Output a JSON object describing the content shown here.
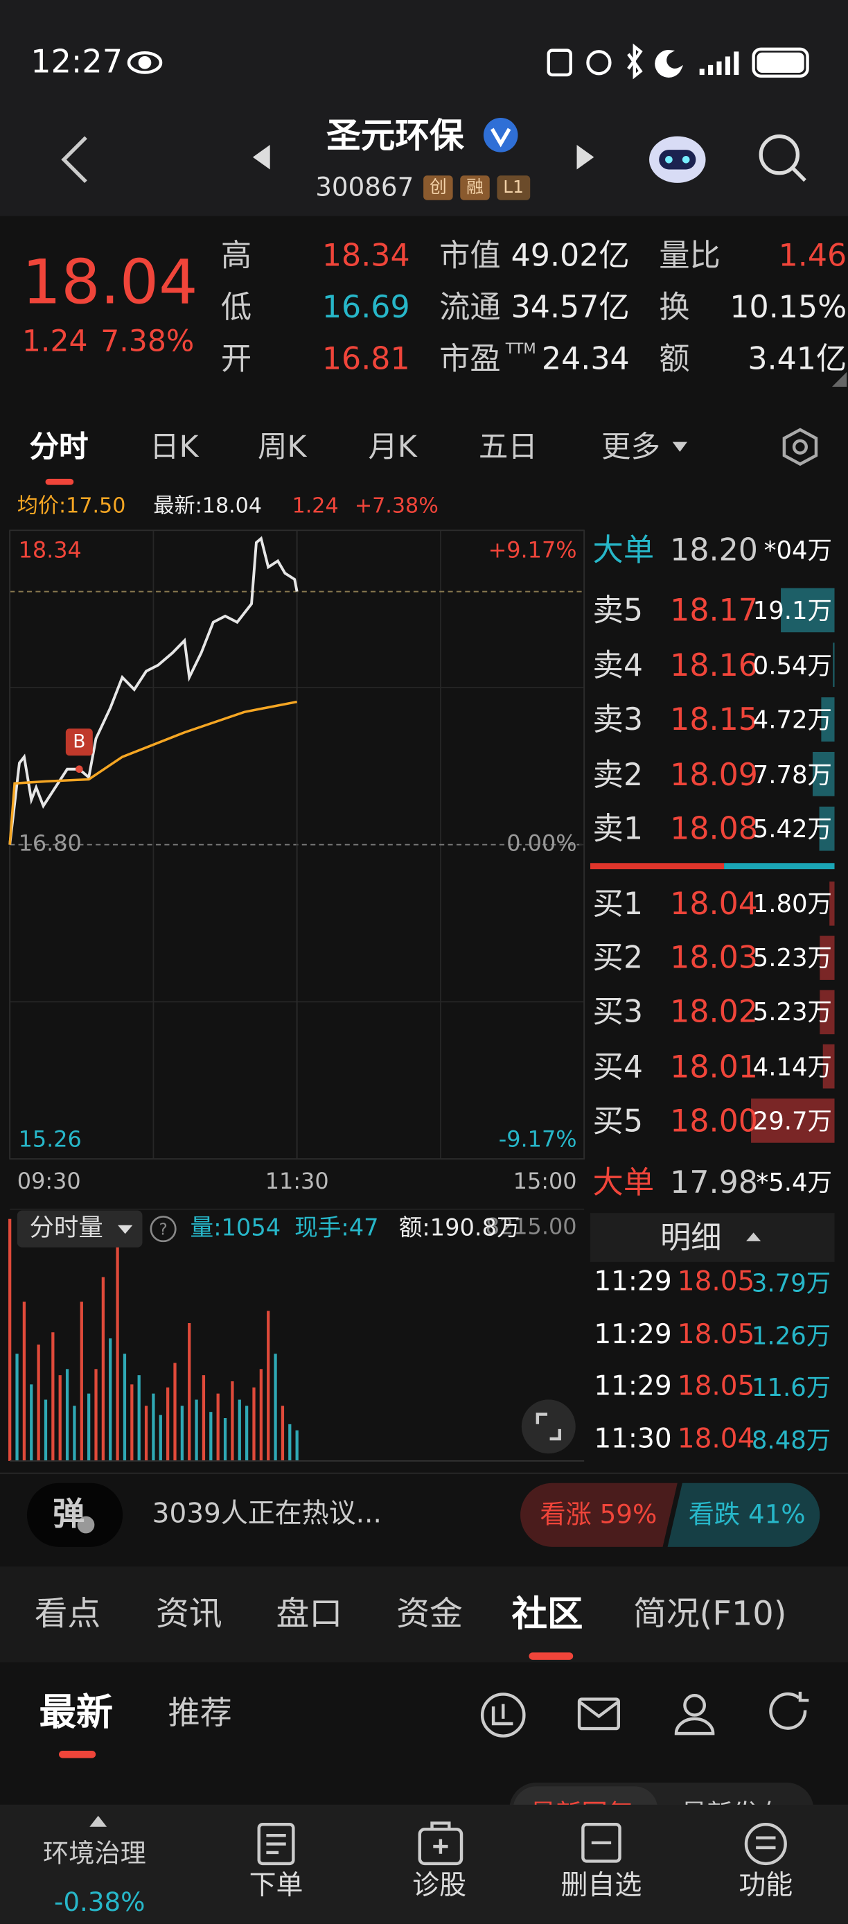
{
  "status_bar": {
    "time": "12:27"
  },
  "header": {
    "title": "圣元环保",
    "code": "300867",
    "tags": [
      "创",
      "融",
      "L1"
    ]
  },
  "quote": {
    "price": "18.04",
    "change": "1.24",
    "change_pct": "7.38%",
    "stats": [
      [
        {
          "label": "高",
          "value": "18.34"
        },
        {
          "label": "低",
          "value": "16.69"
        },
        {
          "label": "开",
          "value": "16.81"
        }
      ],
      [
        {
          "label": "市值",
          "value": "49.02亿"
        },
        {
          "label": "流通",
          "value": "34.57亿"
        },
        {
          "label": "市盈",
          "sup": "TTM",
          "value": "24.34"
        }
      ],
      [
        {
          "label": "量比",
          "value": "1.46"
        },
        {
          "label": "换",
          "value": "10.15%"
        },
        {
          "label": "额",
          "value": "3.41亿"
        }
      ]
    ]
  },
  "tabs": {
    "items": [
      "分时",
      "日K",
      "周K",
      "月K",
      "五日",
      "更多"
    ],
    "active": 0
  },
  "chart_data": [
    {
      "type": "line",
      "info": [
        "均价:17.50",
        "最新:18.04",
        "1.24",
        "+7.38%"
      ],
      "xlim": [
        0,
        240
      ],
      "xticks": [
        {
          "value": 0,
          "label": "09:30"
        },
        {
          "value": 120,
          "label": "11:30"
        },
        {
          "value": 240,
          "label": "15:00"
        }
      ],
      "ylim": [
        15.26,
        18.34
      ],
      "yticks": [
        18.34,
        {
          "value": 16.8,
          "label": "16.80"
        },
        15.26
      ],
      "y2lim": [
        -9.17,
        9.17
      ],
      "y2ticks": [
        {
          "value": 9.17,
          "label": "+9.17%"
        },
        {
          "value": 0,
          "label": "0.00%"
        },
        {
          "value": -9.17,
          "label": "-9.17%"
        }
      ],
      "last_price": 18.04,
      "series": [
        {
          "color": "#e6e6e6",
          "x": [
            0,
            4,
            6,
            9,
            11,
            14,
            19,
            24,
            29,
            33,
            36,
            42,
            47,
            52,
            57,
            62,
            68,
            73,
            75,
            80,
            85,
            90,
            95,
            101,
            103,
            105,
            108,
            112,
            115,
            119,
            120
          ],
          "values": [
            16.8,
            17.2,
            17.23,
            17.02,
            17.08,
            16.99,
            17.08,
            17.17,
            17.17,
            17.13,
            17.32,
            17.47,
            17.62,
            17.56,
            17.65,
            17.68,
            17.74,
            17.8,
            17.62,
            17.74,
            17.89,
            17.92,
            17.89,
            17.98,
            18.28,
            18.3,
            18.16,
            18.19,
            18.13,
            18.1,
            18.04
          ]
        },
        {
          "color": "#f5a623",
          "x": [
            0,
            2,
            15,
            33,
            47,
            73,
            98,
            120
          ],
          "values": [
            16.8,
            17.1,
            17.11,
            17.12,
            17.23,
            17.35,
            17.45,
            17.5
          ]
        }
      ],
      "annotations": [
        {
          "text": "B",
          "x": 29,
          "y": 17.17
        }
      ]
    },
    {
      "type": "bar",
      "selector": "分时量",
      "stats": [
        "量:1054",
        "现手:47",
        "额:190.8万"
      ],
      "xlim": [
        0,
        240
      ],
      "ylim": [
        0,
        8215
      ],
      "yticks": [
        {
          "value": 8215,
          "label": "8215.00"
        }
      ],
      "x": [
        0,
        3,
        6,
        9,
        12,
        15,
        18,
        21,
        24,
        27,
        30,
        33,
        36,
        39,
        42,
        45,
        48,
        51,
        54,
        57,
        60,
        63,
        66,
        69,
        72,
        75,
        78,
        81,
        84,
        87,
        90,
        93,
        96,
        99,
        102,
        105,
        108,
        111,
        114,
        117,
        120
      ],
      "values": [
        7900,
        3500,
        5200,
        2500,
        3800,
        2000,
        4200,
        2800,
        3000,
        1800,
        5200,
        2200,
        3000,
        6000,
        4000,
        7000,
        3500,
        2500,
        2800,
        1800,
        2200,
        1500,
        2400,
        3200,
        1800,
        4500,
        2000,
        2800,
        1600,
        2200,
        1400,
        2600,
        2000,
        1800,
        2400,
        3000,
        4900,
        3500,
        1800,
        1200,
        1000
      ],
      "colors": [
        "#e04a3a",
        "#2fa9b5",
        "#e04a3a",
        "#2fa9b5",
        "#e04a3a",
        "#2fa9b5",
        "#e04a3a",
        "#e04a3a",
        "#2fa9b5",
        "#2fa9b5",
        "#e04a3a",
        "#2fa9b5",
        "#e04a3a",
        "#e04a3a",
        "#2fa9b5",
        "#e04a3a",
        "#2fa9b5",
        "#e04a3a",
        "#2fa9b5",
        "#e04a3a",
        "#2fa9b5",
        "#2fa9b5",
        "#e04a3a",
        "#e04a3a",
        "#2fa9b5",
        "#e04a3a",
        "#2fa9b5",
        "#e04a3a",
        "#2fa9b5",
        "#e04a3a",
        "#2fa9b5",
        "#e04a3a",
        "#2fa9b5",
        "#2fa9b5",
        "#e04a3a",
        "#e04a3a",
        "#e04a3a",
        "#2fa9b5",
        "#e04a3a",
        "#2fa9b5",
        "#2fa9b5"
      ]
    }
  ],
  "order_book": {
    "big_top": {
      "label": "大单",
      "price": "18.20",
      "volume": "*04万"
    },
    "asks": [
      {
        "label": "卖5",
        "price": "18.17",
        "volume": "19.1万"
      },
      {
        "label": "卖4",
        "price": "18.16",
        "volume": "0.54万"
      },
      {
        "label": "卖3",
        "price": "18.15",
        "volume": "4.72万"
      },
      {
        "label": "卖2",
        "price": "18.09",
        "volume": "7.78万"
      },
      {
        "label": "卖1",
        "price": "18.08",
        "volume": "5.42万"
      }
    ],
    "bids": [
      {
        "label": "买1",
        "price": "18.04",
        "volume": "1.80万"
      },
      {
        "label": "买2",
        "price": "18.03",
        "volume": "5.23万"
      },
      {
        "label": "买3",
        "price": "18.02",
        "volume": "5.23万"
      },
      {
        "label": "买4",
        "price": "18.01",
        "volume": "4.14万"
      },
      {
        "label": "买5",
        "price": "18.00",
        "volume": "29.7万"
      }
    ],
    "big_bottom": {
      "label": "大单",
      "price": "17.98",
      "volume": "*5.4万"
    }
  },
  "trade_detail": {
    "title": "明细",
    "rows": [
      {
        "time": "11:29",
        "price": "18.05",
        "volume": "3.79万"
      },
      {
        "time": "11:29",
        "price": "18.05",
        "volume": "1.26万"
      },
      {
        "time": "11:29",
        "price": "18.05",
        "volume": "11.6万"
      },
      {
        "time": "11:30",
        "price": "18.04",
        "volume": "8.48万"
      }
    ]
  },
  "discussion": {
    "badge": "弹",
    "text": "3039人正在热议...",
    "bullish": "看涨 59%",
    "bearish": "看跌 41%"
  },
  "section_tabs": {
    "items": [
      "看点",
      "资讯",
      "盘口",
      "资金",
      "社区",
      "简况(F10)"
    ],
    "active": 4
  },
  "feed_tabs": {
    "items": [
      "最新",
      "推荐"
    ],
    "active": 0
  },
  "sort_options": [
    "最新回复",
    "最新发布"
  ],
  "bottom_bar": {
    "sector": {
      "name": "环境治理",
      "change": "-0.38%"
    },
    "items": [
      "下单",
      "诊股",
      "删自选",
      "功能"
    ]
  }
}
